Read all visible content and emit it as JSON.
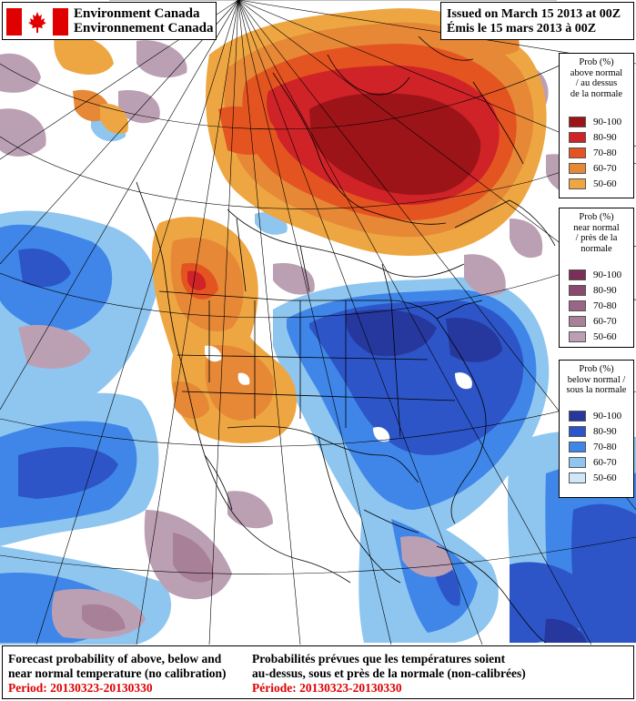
{
  "brand": {
    "name_en": "Environment Canada",
    "name_fr": "Environnement Canada"
  },
  "issued": {
    "en": "Issued on March 15 2013 at 00Z",
    "fr": "Émis le 15 mars 2013 à 00Z"
  },
  "legends": {
    "above": {
      "title_lines": [
        "Prob (%)",
        "above normal",
        "/ au dessus",
        "de la normale"
      ],
      "items": [
        {
          "label": "90-100",
          "color": "#9c1418"
        },
        {
          "label": "80-90",
          "color": "#cf2328"
        },
        {
          "label": "70-80",
          "color": "#e45420"
        },
        {
          "label": "60-70",
          "color": "#e68836"
        },
        {
          "label": "50-60",
          "color": "#eda642"
        }
      ]
    },
    "near": {
      "title_lines": [
        "Prob (%)",
        "near normal",
        "/ près de la",
        "normale"
      ],
      "items": [
        {
          "label": "90-100",
          "color": "#7a2f5a"
        },
        {
          "label": "80-90",
          "color": "#8a4a70"
        },
        {
          "label": "70-80",
          "color": "#9a6686"
        },
        {
          "label": "60-70",
          "color": "#a88098"
        },
        {
          "label": "50-60",
          "color": "#bba0b4"
        }
      ]
    },
    "below": {
      "title_lines": [
        "Prob (%)",
        "below normal /",
        "sous la normale"
      ],
      "items": [
        {
          "label": "90-100",
          "color": "#26389e"
        },
        {
          "label": "80-90",
          "color": "#2d55c8"
        },
        {
          "label": "70-80",
          "color": "#3f86e8"
        },
        {
          "label": "60-70",
          "color": "#8ec6f0"
        },
        {
          "label": "50-60",
          "color": "#cfe8f8"
        }
      ]
    }
  },
  "footer": {
    "en_line1": "Forecast probability of above, below and",
    "en_line2": "near normal temperature (no calibration)",
    "en_period": "Period: 20130323-20130330",
    "fr_line1": "Probabilités prévues que les températures soient",
    "fr_line2": "au-dessus, sous et près de la normale (non-calibrées)",
    "fr_period": "Période: 20130323-20130330"
  }
}
